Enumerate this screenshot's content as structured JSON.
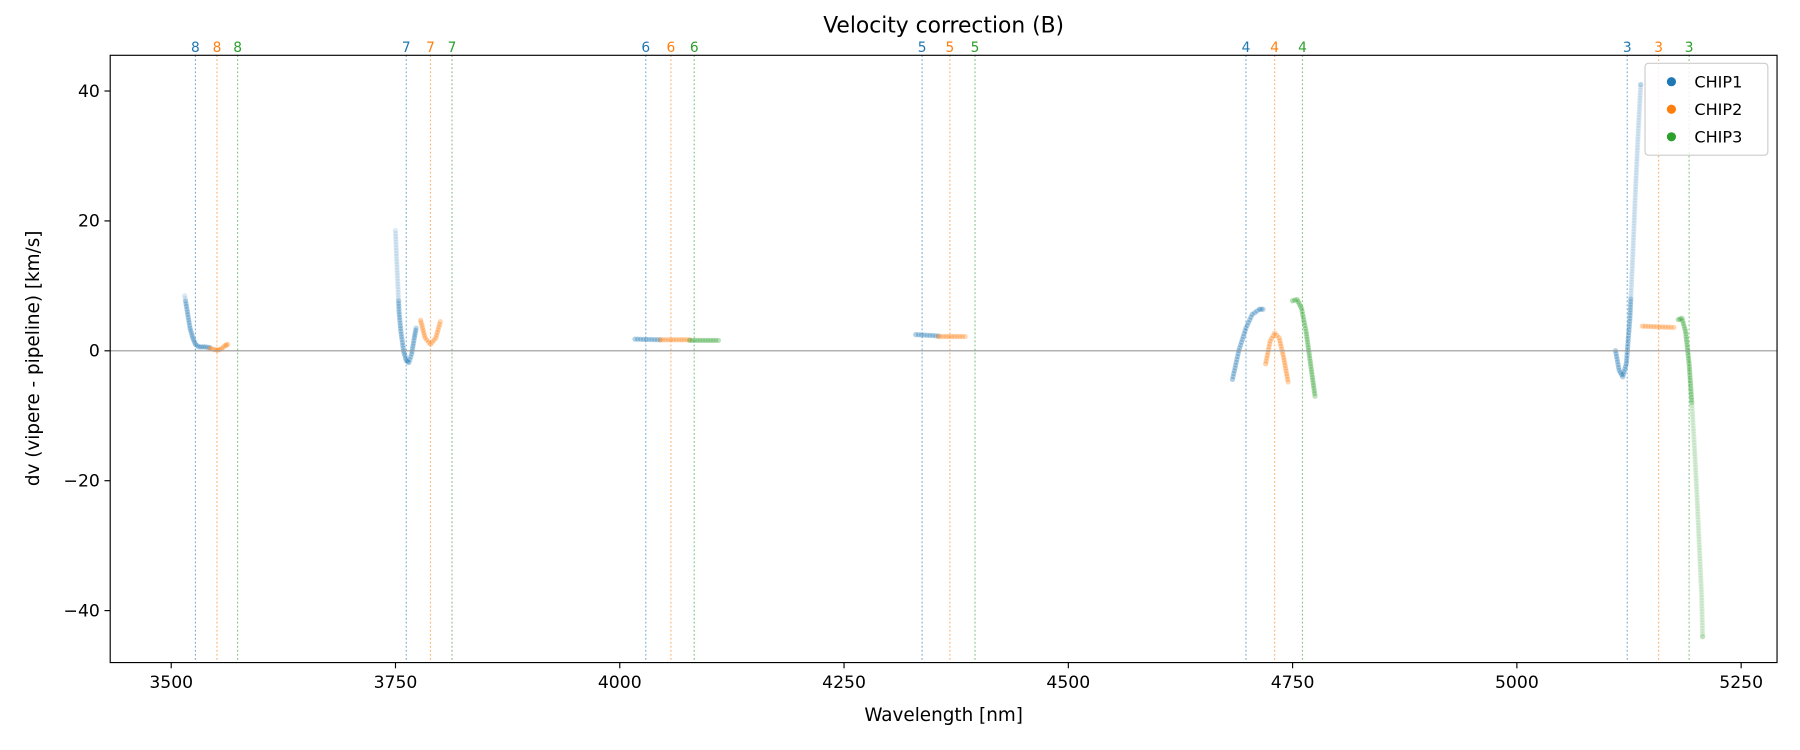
{
  "chart_data": {
    "type": "scatter",
    "title": "Velocity correction (B)",
    "xlabel": "Wavelength [nm]",
    "ylabel": "dv (vipere - pipeline) [km/s]",
    "xlim": [
      3432,
      5290
    ],
    "ylim": [
      -48,
      45.5
    ],
    "xticks": [
      3500,
      3750,
      4000,
      4250,
      4500,
      4750,
      5000,
      5250
    ],
    "yticks": [
      -40,
      -20,
      0,
      20,
      40
    ],
    "grid": false,
    "legend": "top-right",
    "zero_line": true,
    "colors": {
      "CHIP1": "#1f77b4",
      "CHIP2": "#ff7f0e",
      "CHIP3": "#2ca02c"
    },
    "order_lines": [
      {
        "order": "8",
        "CHIP1": 3527,
        "CHIP2": 3551,
        "CHIP3": 3574
      },
      {
        "order": "7",
        "CHIP1": 3762,
        "CHIP2": 3789,
        "CHIP3": 3813
      },
      {
        "order": "6",
        "CHIP1": 4029,
        "CHIP2": 4057,
        "CHIP3": 4083
      },
      {
        "order": "5",
        "CHIP1": 4337,
        "CHIP2": 4368,
        "CHIP3": 4396
      },
      {
        "order": "4",
        "CHIP1": 4698,
        "CHIP2": 4730,
        "CHIP3": 4761
      },
      {
        "order": "3",
        "CHIP1": 5123,
        "CHIP2": 5158,
        "CHIP3": 5192
      }
    ],
    "series": [
      {
        "name": "CHIP1",
        "segments": [
          [
            [
              3515,
              8.5
            ],
            [
              3518,
              6
            ],
            [
              3521,
              3.5
            ],
            [
              3524,
              2
            ],
            [
              3527,
              1
            ],
            [
              3531,
              0.6
            ],
            [
              3538,
              0.6
            ],
            [
              3543,
              0.5
            ]
          ],
          [
            [
              3750,
              18.5
            ],
            [
              3751,
              15
            ],
            [
              3752,
              12
            ],
            [
              3753,
              9
            ],
            [
              3754,
              6
            ],
            [
              3756,
              3
            ],
            [
              3759,
              0
            ],
            [
              3762,
              -1.5
            ],
            [
              3765,
              -1.8
            ],
            [
              3768,
              -0.5
            ],
            [
              3771,
              2
            ],
            [
              3773,
              3.5
            ]
          ],
          [
            [
              4017,
              1.8
            ],
            [
              4045,
              1.7
            ]
          ],
          [
            [
              4330,
              2.5
            ],
            [
              4355,
              2.3
            ]
          ],
          [
            [
              4683,
              -4.4
            ],
            [
              4690,
              0
            ],
            [
              4698,
              3.5
            ],
            [
              4705,
              5.6
            ],
            [
              4713,
              6.4
            ],
            [
              4717,
              6.4
            ]
          ],
          [
            [
              5110,
              0
            ],
            [
              5114,
              -3
            ],
            [
              5118,
              -4
            ],
            [
              5122,
              -2
            ],
            [
              5126,
              5
            ],
            [
              5129,
              14
            ],
            [
              5132,
              24
            ],
            [
              5135,
              33
            ],
            [
              5138,
              41
            ]
          ]
        ]
      },
      {
        "name": "CHIP2",
        "segments": [
          [
            [
              3543,
              0.4
            ],
            [
              3548,
              0.2
            ],
            [
              3552,
              0.1
            ],
            [
              3556,
              0.3
            ],
            [
              3560,
              0.8
            ],
            [
              3563,
              1.0
            ]
          ],
          [
            [
              3778,
              4.7
            ],
            [
              3783,
              2
            ],
            [
              3789,
              1
            ],
            [
              3795,
              2
            ],
            [
              3800,
              4.5
            ]
          ],
          [
            [
              4045,
              1.7
            ],
            [
              4078,
              1.7
            ]
          ],
          [
            [
              4355,
              2.2
            ],
            [
              4385,
              2.2
            ]
          ],
          [
            [
              4720,
              -2
            ],
            [
              4725,
              1.5
            ],
            [
              4730,
              2.7
            ],
            [
              4735,
              2
            ],
            [
              4740,
              -1
            ],
            [
              4745,
              -4.8
            ]
          ],
          [
            [
              5140,
              3.8
            ],
            [
              5175,
              3.6
            ]
          ]
        ]
      },
      {
        "name": "CHIP3",
        "segments": [
          [
            [
              4078,
              1.6
            ],
            [
              4110,
              1.6
            ]
          ],
          [
            [
              4750,
              7.7
            ],
            [
              4755,
              7.9
            ],
            [
              4760,
              6.5
            ],
            [
              4765,
              3
            ],
            [
              4770,
              -2
            ],
            [
              4775,
              -7
            ]
          ],
          [
            [
              5180,
              4.8
            ],
            [
              5184,
              5
            ],
            [
              5188,
              3
            ],
            [
              5192,
              -2
            ],
            [
              5195,
              -8
            ],
            [
              5198,
              -15
            ],
            [
              5201,
              -23
            ],
            [
              5204,
              -32
            ],
            [
              5206,
              -38
            ],
            [
              5207,
              -44
            ]
          ]
        ]
      }
    ]
  }
}
